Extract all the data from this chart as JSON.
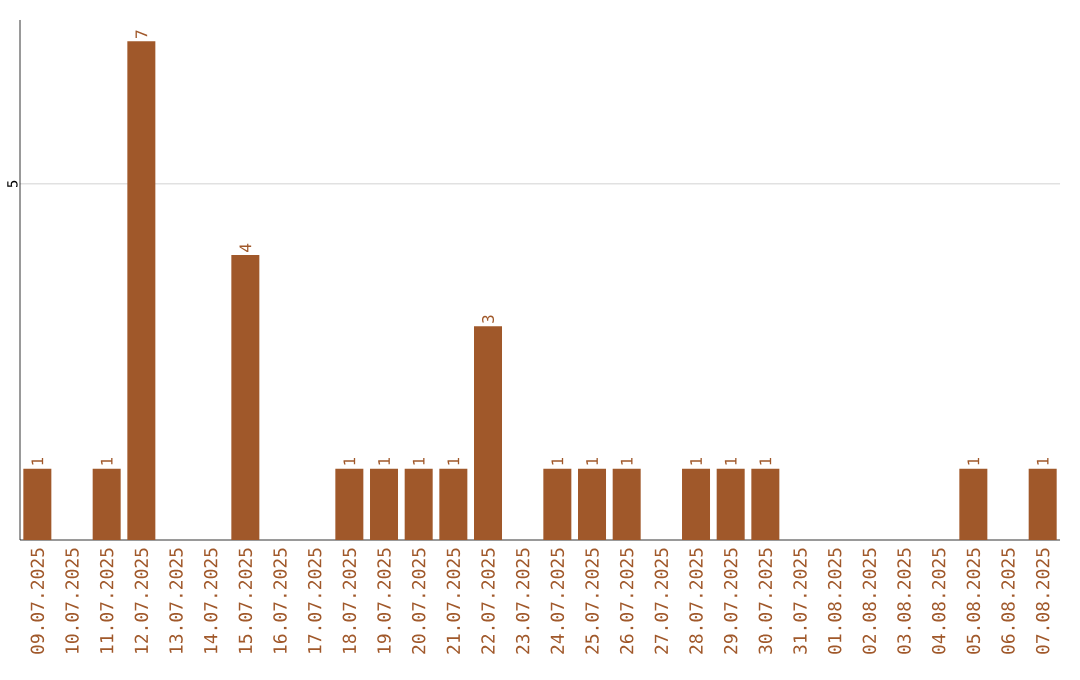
{
  "chart_data": {
    "type": "bar",
    "categories": [
      "09.07.2025",
      "10.07.2025",
      "11.07.2025",
      "12.07.2025",
      "13.07.2025",
      "14.07.2025",
      "15.07.2025",
      "16.07.2025",
      "17.07.2025",
      "18.07.2025",
      "19.07.2025",
      "20.07.2025",
      "21.07.2025",
      "22.07.2025",
      "23.07.2025",
      "24.07.2025",
      "25.07.2025",
      "26.07.2025",
      "27.07.2025",
      "28.07.2025",
      "29.07.2025",
      "30.07.2025",
      "31.07.2025",
      "01.08.2025",
      "02.08.2025",
      "03.08.2025",
      "04.08.2025",
      "05.08.2025",
      "06.08.2025",
      "07.08.2025"
    ],
    "values": [
      1,
      0,
      1,
      7,
      0,
      0,
      4,
      0,
      0,
      1,
      1,
      1,
      1,
      3,
      0,
      1,
      1,
      1,
      0,
      1,
      1,
      1,
      0,
      0,
      0,
      0,
      0,
      1,
      0,
      1
    ],
    "value_labels": [
      "1",
      null,
      "1",
      "7",
      null,
      null,
      "4",
      null,
      null,
      "1",
      "1",
      "1",
      "1",
      "3",
      null,
      "1",
      "1",
      "1",
      null,
      "1",
      "1",
      "1",
      null,
      null,
      null,
      null,
      null,
      "1",
      null,
      "1"
    ],
    "color": "#a0582a",
    "ylim": [
      0,
      7.3
    ],
    "yticks": [
      5
    ],
    "grid": "y"
  }
}
